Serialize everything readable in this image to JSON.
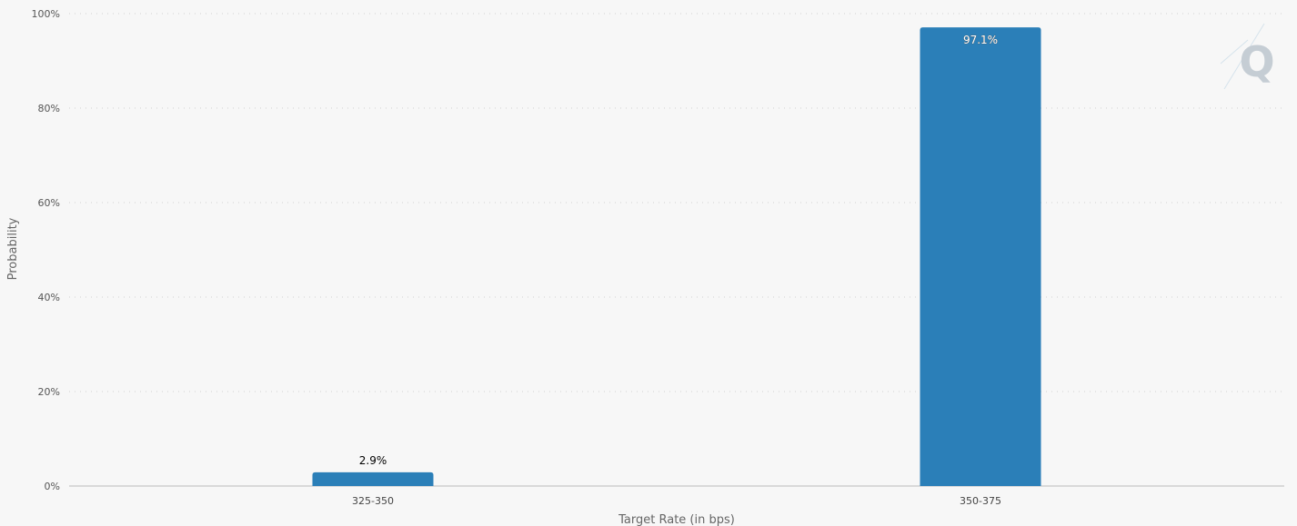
{
  "chart_data": {
    "type": "bar",
    "title": "",
    "categories": [
      "325-350",
      "350-375"
    ],
    "series": [
      {
        "values": [
          2.9,
          97.1
        ],
        "color": "#2b7fb8"
      }
    ],
    "data_labels": [
      "2.9%",
      "97.1%"
    ],
    "xlabel": "Target Rate (in bps)",
    "ylabel": "Probability",
    "ylim": [
      0,
      100
    ],
    "yticks": [
      0,
      20,
      40,
      60,
      80,
      100
    ],
    "ytick_labels": [
      "0%",
      "20%",
      "40%",
      "60%",
      "80%",
      "100%"
    ],
    "grid": true,
    "legend": "none"
  },
  "watermark": {
    "text": "Q",
    "color": "#c5cdd4"
  }
}
